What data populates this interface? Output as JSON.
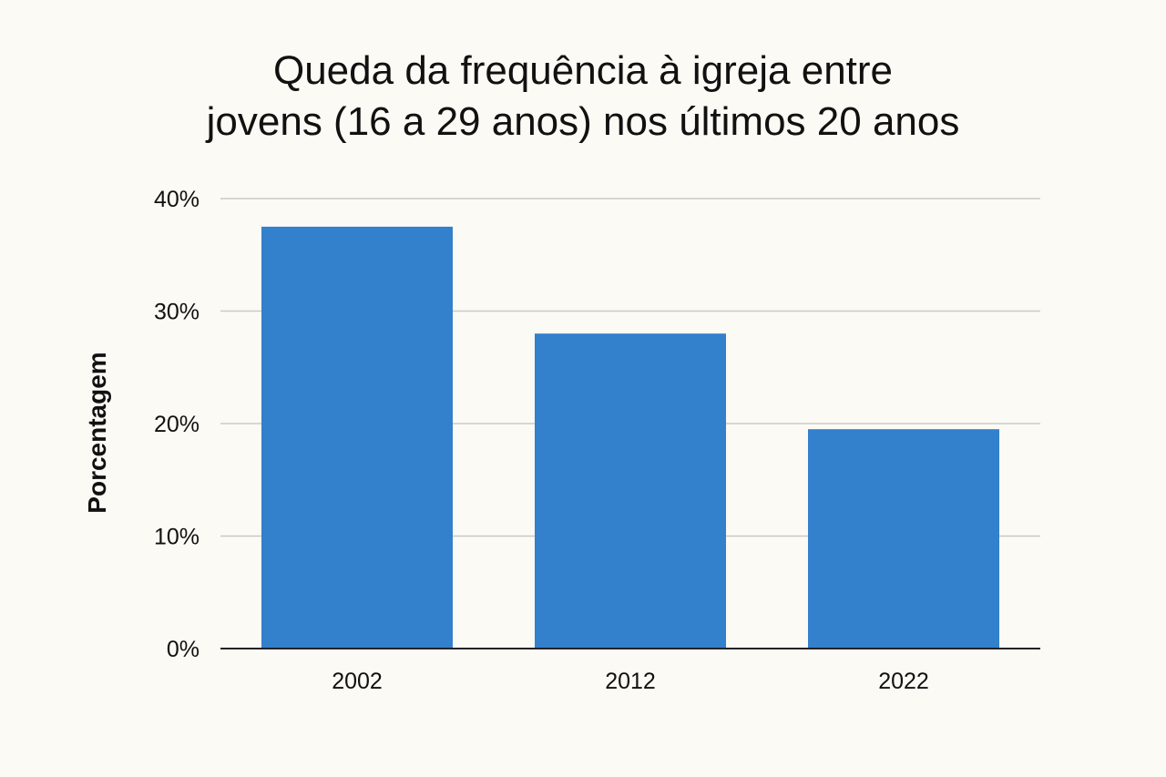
{
  "chart_data": {
    "type": "bar",
    "title_lines": [
      "Queda da frequência à igreja entre",
      "jovens (16 a 29 anos) nos últimos 20 anos"
    ],
    "categories": [
      "2002",
      "2012",
      "2022"
    ],
    "values": [
      37.5,
      28.0,
      19.5
    ],
    "xlabel": "",
    "ylabel": "Porcentagem",
    "ylim": [
      0,
      40
    ],
    "yticks": [
      0,
      10,
      20,
      30,
      40
    ],
    "ytick_labels": [
      "0%",
      "10%",
      "20%",
      "30%",
      "40%"
    ],
    "grid": true,
    "legend": "none",
    "bar_color": "#3380cc",
    "grid_color": "#c9c9c9",
    "axis_color": "#222222"
  }
}
